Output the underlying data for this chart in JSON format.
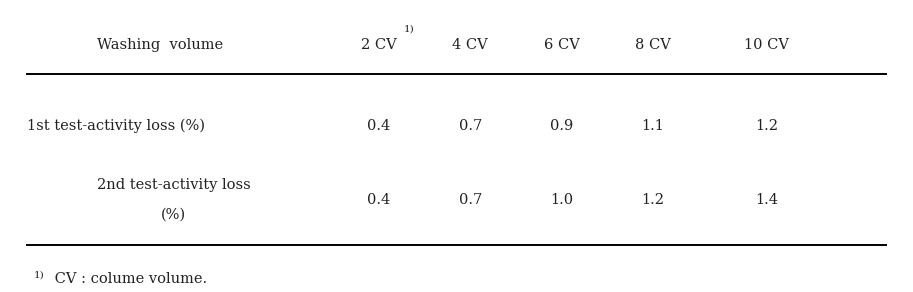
{
  "header_col": "Washing  volume",
  "col_headers": [
    "2 CV",
    "4 CV",
    "6 CV",
    "8 CV",
    "10 CV"
  ],
  "col_header_superscript_idx": 0,
  "row_labels": [
    "1st test-activity loss (%)",
    "2nd test-activity loss\n(%)"
  ],
  "data": [
    [
      "0.4",
      "0.7",
      "0.9",
      "1.1",
      "1.2"
    ],
    [
      "0.4",
      "0.7",
      "1.0",
      "1.2",
      "1.4"
    ]
  ],
  "footnote_sup": "1)",
  "footnote_text": " CV : colume volume.",
  "bg_color": "#ffffff",
  "text_color": "#222222",
  "font_size": 10.5,
  "sup_font_size": 7.5
}
